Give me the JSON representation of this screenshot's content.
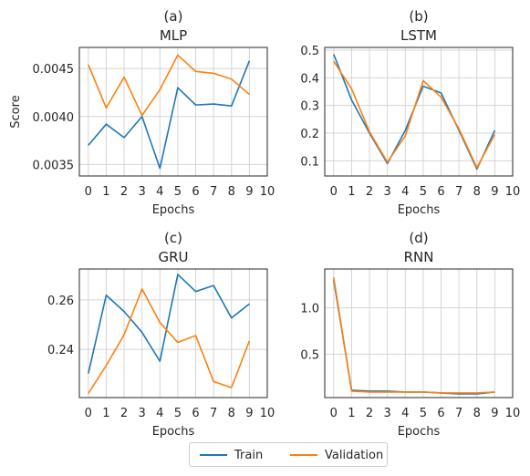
{
  "chart_data": [
    {
      "type": "line",
      "panel": "(a)",
      "title": "MLP",
      "xlabel": "Epochs",
      "ylabel": "Score",
      "xlim": [
        -0.5,
        10
      ],
      "ylim": [
        0.00338,
        0.00472
      ],
      "xticks": [
        "0",
        "1",
        "2",
        "3",
        "4",
        "5",
        "6",
        "7",
        "8",
        "9",
        "10"
      ],
      "yticks": [
        0.0035,
        0.004,
        0.0045
      ],
      "ytick_labels": [
        "0.0035",
        "0.0040",
        "0.0045"
      ],
      "grid": true,
      "x": [
        0,
        1,
        2,
        3,
        4,
        5,
        6,
        7,
        8,
        9
      ],
      "series": [
        {
          "name": "Train",
          "values": [
            0.0037,
            0.00392,
            0.00378,
            0.004,
            0.00346,
            0.0043,
            0.00412,
            0.00413,
            0.00411,
            0.00458
          ]
        },
        {
          "name": "Validation",
          "values": [
            0.00454,
            0.00409,
            0.00441,
            0.00401,
            0.00428,
            0.00464,
            0.00447,
            0.00445,
            0.00439,
            0.00423
          ]
        }
      ]
    },
    {
      "type": "line",
      "panel": "(b)",
      "title": "LSTM",
      "xlabel": "Epochs",
      "ylabel": "",
      "xlim": [
        -0.5,
        10
      ],
      "ylim": [
        0.045,
        0.51
      ],
      "xticks": [
        "0",
        "1",
        "2",
        "3",
        "4",
        "5",
        "6",
        "7",
        "8",
        "9",
        "10"
      ],
      "yticks": [
        0.1,
        0.2,
        0.3,
        0.4,
        0.5
      ],
      "ytick_labels": [
        "0.1",
        "0.2",
        "0.3",
        "0.4",
        "0.5"
      ],
      "grid": true,
      "x": [
        0,
        1,
        2,
        3,
        4,
        5,
        6,
        7,
        8,
        9
      ],
      "series": [
        {
          "name": "Train",
          "values": [
            0.485,
            0.32,
            0.2,
            0.09,
            0.21,
            0.37,
            0.345,
            0.21,
            0.07,
            0.21
          ]
        },
        {
          "name": "Validation",
          "values": [
            0.46,
            0.36,
            0.205,
            0.095,
            0.19,
            0.39,
            0.33,
            0.215,
            0.075,
            0.195
          ]
        }
      ]
    },
    {
      "type": "line",
      "panel": "(c)",
      "title": "GRU",
      "xlabel": "Epochs",
      "ylabel": "",
      "xlim": [
        -0.5,
        10
      ],
      "ylim": [
        0.2205,
        0.2725
      ],
      "xticks": [
        "0",
        "1",
        "2",
        "3",
        "4",
        "5",
        "6",
        "7",
        "8",
        "9",
        "10"
      ],
      "yticks": [
        0.24,
        0.26
      ],
      "ytick_labels": [
        "0.24",
        "0.26"
      ],
      "grid": true,
      "x": [
        0,
        1,
        2,
        3,
        4,
        5,
        6,
        7,
        8,
        9
      ],
      "series": [
        {
          "name": "Train",
          "values": [
            0.2302,
            0.2619,
            0.2553,
            0.2469,
            0.2352,
            0.2703,
            0.2634,
            0.2658,
            0.2527,
            0.2584
          ]
        },
        {
          "name": "Validation",
          "values": [
            0.2222,
            0.2335,
            0.2459,
            0.2644,
            0.2509,
            0.2428,
            0.2456,
            0.227,
            0.2245,
            0.2434
          ]
        }
      ]
    },
    {
      "type": "line",
      "panel": "(d)",
      "title": "RNN",
      "xlabel": "Epochs",
      "ylabel": "",
      "xlim": [
        -0.5,
        10
      ],
      "ylim": [
        0.03,
        1.42
      ],
      "xticks": [
        "0",
        "1",
        "2",
        "3",
        "4",
        "5",
        "6",
        "7",
        "8",
        "9",
        "10"
      ],
      "yticks": [
        0.5,
        1.0
      ],
      "ytick_labels": [
        "0.5",
        "1.0"
      ],
      "grid": true,
      "x": [
        0,
        1,
        2,
        3,
        4,
        5,
        6,
        7,
        8,
        9
      ],
      "series": [
        {
          "name": "Train",
          "values": [
            1.3,
            0.11,
            0.1,
            0.1,
            0.09,
            0.09,
            0.08,
            0.07,
            0.07,
            0.09
          ]
        },
        {
          "name": "Validation",
          "values": [
            1.33,
            0.1,
            0.09,
            0.09,
            0.09,
            0.09,
            0.08,
            0.08,
            0.08,
            0.09
          ]
        }
      ]
    }
  ],
  "legend": {
    "placement": "bottom-center",
    "items": [
      {
        "label": "Train",
        "color": "#1f77b4"
      },
      {
        "label": "Validation",
        "color": "#ff7f0e"
      }
    ]
  },
  "colors": {
    "train": "#1f77b4",
    "validation": "#ff7f0e",
    "grid": "#d4d4d4",
    "axes": "#262626"
  }
}
